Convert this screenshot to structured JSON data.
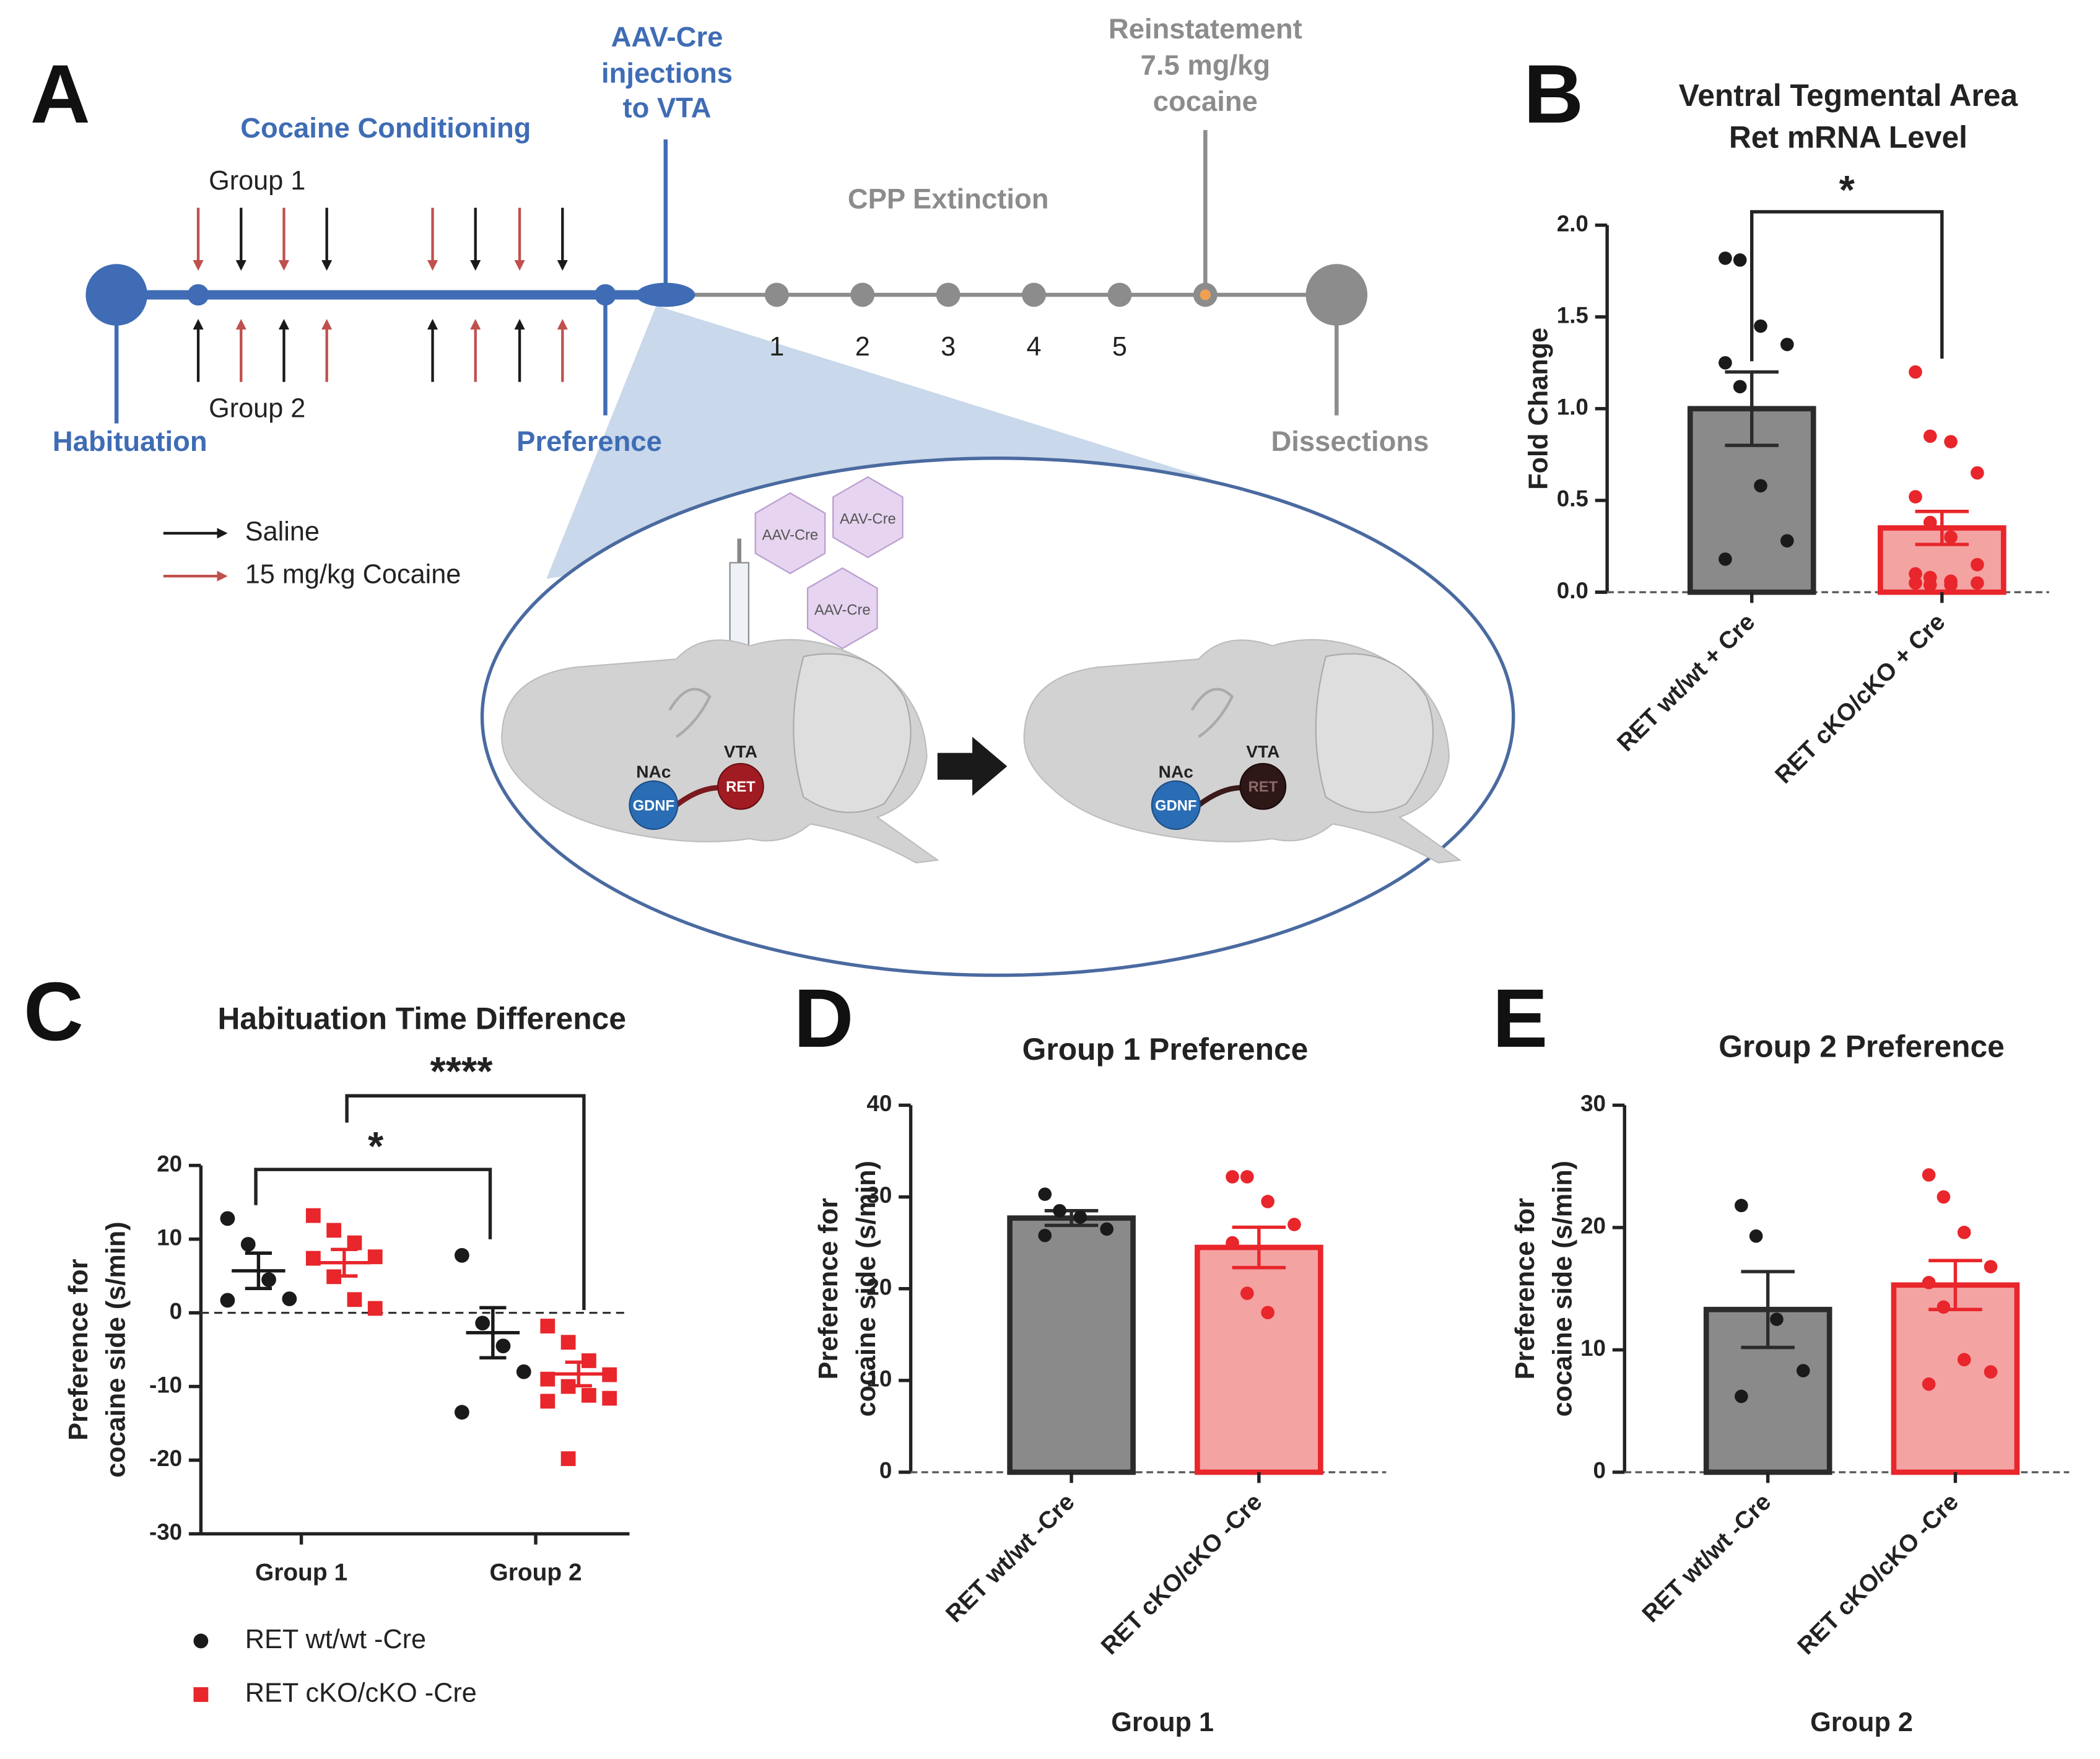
{
  "panel_a": {
    "label": "A",
    "conditioning": "Cocaine Conditioning",
    "groups": [
      "Group 1",
      "Group 2"
    ],
    "injection": [
      "AAV-Cre",
      "injections",
      "to VTA"
    ],
    "stages": [
      "Habituation",
      "Preference",
      "Dissections"
    ],
    "extinction": "CPP Extinction",
    "days": [
      "1",
      "2",
      "3",
      "4",
      "5"
    ],
    "reinstatement": [
      "Reinstatement",
      "7.5 mg/kg",
      "cocaine"
    ],
    "legend": [
      "Saline",
      "15 mg/kg Cocaine"
    ],
    "virus": [
      "AAV-Cre",
      "AAV-Cre",
      "AAV-Cre"
    ],
    "brains": [
      {
        "nac": "NAc",
        "vta": "VTA",
        "gdnf": "GDNF",
        "ret": "RET"
      },
      {
        "nac": "NAc",
        "vta": "VTA",
        "gdnf": "GDNF",
        "ret": "RET"
      }
    ]
  },
  "chart_data": [
    {
      "type": "bar",
      "panel": "B",
      "title": [
        "Ventral Tegmental Area",
        "Ret mRNA Level"
      ],
      "ylabel": "Fold Change",
      "categories": [
        "RET wt/wt + Cre",
        "RET cKO/cKO + Cre"
      ],
      "values": [
        1.0,
        0.35
      ],
      "errors": [
        0.2,
        0.09
      ],
      "points": [
        [
          1.82,
          1.81,
          1.45,
          1.35,
          1.25,
          1.12,
          0.58,
          0.28,
          0.18
        ],
        [
          1.2,
          0.85,
          0.82,
          0.65,
          0.52,
          0.38,
          0.3,
          0.15,
          0.1,
          0.08,
          0.06,
          0.05,
          0.05,
          0.04,
          0.04
        ]
      ],
      "colors": [
        "#8a8a8a",
        "#f4a3a3"
      ],
      "edge_colors": [
        "#2b2b2b",
        "#e8262b"
      ],
      "point_colors": [
        "#1a1a1a",
        "#e8262b"
      ],
      "ylim": [
        0,
        2
      ],
      "yticks": [
        {
          "value": 0,
          "label": "0.0"
        },
        {
          "value": 0.5,
          "label": "0.5"
        },
        {
          "value": 1,
          "label": "1.0"
        },
        {
          "value": 1.5,
          "label": "1.5"
        },
        {
          "value": 2,
          "label": "2.0"
        }
      ],
      "annotation": "*"
    },
    {
      "type": "dot",
      "panel": "C",
      "title": "Habituation Time Difference",
      "ylabel": [
        "Preference for",
        "cocaine side (s/min)"
      ],
      "categories": [
        "Group 1",
        "Group 2"
      ],
      "ylim": [
        -30,
        20
      ],
      "yticks": [
        -30,
        -20,
        -10,
        0,
        10,
        20
      ],
      "series": [
        {
          "name": "RET wt/wt -Cre",
          "color": "#1a1a1a",
          "marker": "circle",
          "values": [
            5.7,
            -2.7
          ],
          "errors": [
            2.4,
            3.4
          ],
          "points": [
            [
              12.8,
              9.3,
              4.5,
              1.9,
              1.7
            ],
            [
              7.8,
              -1.4,
              -4.5,
              -8,
              -13.5
            ]
          ]
        },
        {
          "name": "RET cKO/cKO -Cre",
          "color": "#e8262b",
          "marker": "square",
          "values": [
            6.8,
            -8.3
          ],
          "errors": [
            1.8,
            1.6
          ],
          "points": [
            [
              13.2,
              11.2,
              9.5,
              7.6,
              7.4,
              4.9,
              1.8,
              0.6
            ],
            [
              -1.8,
              -4,
              -6.5,
              -8.4,
              -9,
              -10,
              -11.2,
              -11.6,
              -12,
              -19.8
            ]
          ]
        }
      ],
      "annotations": [
        "*",
        "****"
      ],
      "legend": "bottom-left"
    },
    {
      "type": "bar",
      "panel": "D",
      "title": "Group 1 Preference",
      "ylabel": [
        "Preference for",
        "cocaine side (s/min)"
      ],
      "xlabel": "Group 1",
      "categories": [
        "RET wt/wt -Cre",
        "RET cKO/cKO -Cre"
      ],
      "values": [
        27.7,
        24.5
      ],
      "errors": [
        0.8,
        2.2
      ],
      "points": [
        [
          30.3,
          28.5,
          27.8,
          26.5,
          25.8
        ],
        [
          32.2,
          32.2,
          29.5,
          27,
          25,
          19.5,
          17.4
        ]
      ],
      "colors": [
        "#8a8a8a",
        "#f4a3a3"
      ],
      "edge_colors": [
        "#2b2b2b",
        "#e8262b"
      ],
      "point_colors": [
        "#1a1a1a",
        "#e8262b"
      ],
      "ylim": [
        0,
        40
      ],
      "yticks": [
        0,
        10,
        20,
        30,
        40
      ]
    },
    {
      "type": "bar",
      "panel": "E",
      "title": "Group 2 Preference",
      "ylabel": [
        "Preference for",
        "cocaine side (s/min)"
      ],
      "xlabel": "Group 2",
      "categories": [
        "RET wt/wt -Cre",
        "RET cKO/cKO -Cre"
      ],
      "values": [
        13.3,
        15.3
      ],
      "errors": [
        3.1,
        2.0
      ],
      "points": [
        [
          21.8,
          19.3,
          12.5,
          8.3,
          6.2
        ],
        [
          24.3,
          22.5,
          19.6,
          16.8,
          15.5,
          13.5,
          9.2,
          8.2,
          7.2
        ]
      ],
      "colors": [
        "#8a8a8a",
        "#f4a3a3"
      ],
      "edge_colors": [
        "#2b2b2b",
        "#e8262b"
      ],
      "point_colors": [
        "#1a1a1a",
        "#e8262b"
      ],
      "ylim": [
        0,
        30
      ],
      "yticks": [
        0,
        10,
        20,
        30
      ]
    }
  ]
}
